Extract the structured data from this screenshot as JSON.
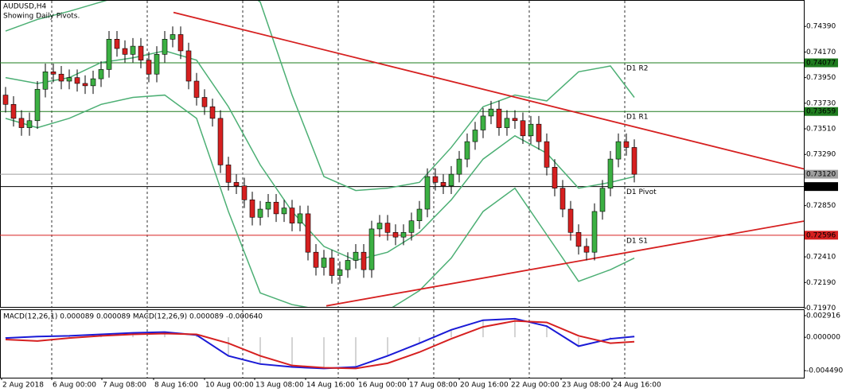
{
  "chart_data": {
    "type": "candlestick",
    "title": "AUDUSD,H4",
    "subtitle": "Showing Daily Pivots.",
    "xlim": [
      -0.7,
      100.3
    ],
    "ylim": [
      0.7198,
      0.7461
    ],
    "yticks": [
      {
        "value": 0.7439,
        "label": "0.74390"
      },
      {
        "value": 0.7417,
        "label": "0.74170"
      },
      {
        "value": 0.7395,
        "label": "0.73950"
      },
      {
        "value": 0.7373,
        "label": "0.73730"
      },
      {
        "value": 0.7351,
        "label": "0.73510"
      },
      {
        "value": 0.7329,
        "label": "0.73290"
      },
      {
        "value": 0.7285,
        "label": "0.72850"
      },
      {
        "value": 0.7241,
        "label": "0.72410"
      },
      {
        "value": 0.7219,
        "label": "0.72190"
      },
      {
        "value": 0.7197,
        "label": "0.71970"
      }
    ],
    "xticks": [
      {
        "value": -0.5,
        "label": "2 Aug 2018"
      },
      {
        "value": 5.8,
        "label": "6 Aug 00:00"
      },
      {
        "value": 12.1,
        "label": "7 Aug 08:00"
      },
      {
        "value": 18.6,
        "label": "8 Aug 16:00"
      },
      {
        "value": 25,
        "label": "10 Aug 00:00"
      },
      {
        "value": 31.3,
        "label": "13 Aug 08:00"
      },
      {
        "value": 37.7,
        "label": "14 Aug 16:00"
      },
      {
        "value": 44.2,
        "label": "16 Aug 00:00"
      },
      {
        "value": 50.6,
        "label": "17 Aug 08:00"
      },
      {
        "value": 57,
        "label": "20 Aug 16:00"
      },
      {
        "value": 63.4,
        "label": "22 Aug 00:00"
      },
      {
        "value": 69.8,
        "label": "23 Aug 08:00"
      },
      {
        "value": 76.2,
        "label": "24 Aug 16:00"
      }
    ],
    "vgrid": [
      5.8,
      17.8,
      29.8,
      41.8,
      53.8,
      65.8,
      77.8
    ],
    "bull_color": "#3cb043",
    "bear_color": "#d62020",
    "open": [
      0.738,
      0.7372,
      0.736,
      0.7352,
      0.7358,
      0.7385,
      0.74,
      0.7398,
      0.7392,
      0.7395,
      0.739,
      0.7388,
      0.7394,
      0.7402,
      0.7428,
      0.742,
      0.7415,
      0.7422,
      0.741,
      0.7398,
      0.7415,
      0.7428,
      0.7432,
      0.7418,
      0.7392,
      0.7378,
      0.737,
      0.736,
      0.732,
      0.7305,
      0.7302,
      0.729,
      0.7275,
      0.7282,
      0.7288,
      0.7278,
      0.7283,
      0.727,
      0.7278,
      0.7245,
      0.7232,
      0.724,
      0.7225,
      0.723,
      0.7238,
      0.7245,
      0.723,
      0.7265,
      0.727,
      0.7262,
      0.7258,
      0.7262,
      0.7272,
      0.7282,
      0.731,
      0.7305,
      0.7302,
      0.7312,
      0.7325,
      0.734,
      0.735,
      0.7362,
      0.7368,
      0.7352,
      0.736,
      0.7358,
      0.7345,
      0.7355,
      0.734,
      0.7318,
      0.73,
      0.7282,
      0.7262,
      0.725,
      0.7245,
      0.728,
      0.73,
      0.7325,
      0.734,
      0.7335
    ],
    "high": [
      0.7387,
      0.7379,
      0.7367,
      0.7365,
      0.7392,
      0.7407,
      0.7407,
      0.7405,
      0.7402,
      0.7402,
      0.7397,
      0.7401,
      0.7409,
      0.7435,
      0.7435,
      0.7427,
      0.7429,
      0.7429,
      0.7417,
      0.7422,
      0.7435,
      0.7439,
      0.7439,
      0.7425,
      0.7399,
      0.7385,
      0.7377,
      0.7367,
      0.7327,
      0.7312,
      0.7309,
      0.7297,
      0.7289,
      0.7295,
      0.7295,
      0.729,
      0.729,
      0.7285,
      0.7285,
      0.7252,
      0.7247,
      0.7247,
      0.7237,
      0.7245,
      0.7252,
      0.7252,
      0.7272,
      0.7277,
      0.7277,
      0.7269,
      0.7269,
      0.7279,
      0.7289,
      0.7317,
      0.7317,
      0.7312,
      0.7319,
      0.7332,
      0.7347,
      0.7357,
      0.7369,
      0.7375,
      0.7375,
      0.7367,
      0.7367,
      0.7365,
      0.7362,
      0.7362,
      0.7347,
      0.7325,
      0.7307,
      0.7289,
      0.7269,
      0.7257,
      0.7287,
      0.7307,
      0.7332,
      0.7347,
      0.7347,
      0.7342
    ],
    "low": [
      0.7365,
      0.7353,
      0.7345,
      0.7345,
      0.7351,
      0.7378,
      0.7391,
      0.7385,
      0.7385,
      0.7383,
      0.7381,
      0.7381,
      0.7387,
      0.7395,
      0.7413,
      0.7408,
      0.7408,
      0.7403,
      0.7391,
      0.7391,
      0.7408,
      0.7421,
      0.7411,
      0.7385,
      0.7371,
      0.7363,
      0.7353,
      0.7313,
      0.7298,
      0.7295,
      0.7283,
      0.7268,
      0.7268,
      0.7275,
      0.7271,
      0.7271,
      0.7263,
      0.7263,
      0.7238,
      0.7225,
      0.7225,
      0.7218,
      0.7218,
      0.7223,
      0.7231,
      0.7223,
      0.7223,
      0.7258,
      0.7255,
      0.7251,
      0.7251,
      0.7255,
      0.7265,
      0.7275,
      0.7298,
      0.7295,
      0.7295,
      0.7305,
      0.7318,
      0.7333,
      0.7343,
      0.7355,
      0.7345,
      0.7345,
      0.7351,
      0.7338,
      0.7338,
      0.7333,
      0.7311,
      0.7293,
      0.7275,
      0.7255,
      0.7243,
      0.7238,
      0.7238,
      0.7273,
      0.7293,
      0.7318,
      0.7328,
      0.7305
    ],
    "close": [
      0.7372,
      0.736,
      0.7352,
      0.7358,
      0.7385,
      0.74,
      0.7398,
      0.7392,
      0.7395,
      0.739,
      0.7388,
      0.7394,
      0.7402,
      0.7428,
      0.742,
      0.7415,
      0.7422,
      0.741,
      0.7398,
      0.7415,
      0.7428,
      0.7432,
      0.7418,
      0.7392,
      0.7378,
      0.737,
      0.736,
      0.732,
      0.7305,
      0.7302,
      0.729,
      0.7275,
      0.7282,
      0.7288,
      0.7278,
      0.7283,
      0.727,
      0.7278,
      0.7245,
      0.7232,
      0.724,
      0.7225,
      0.723,
      0.7238,
      0.7245,
      0.723,
      0.7265,
      0.727,
      0.7262,
      0.7258,
      0.7262,
      0.7272,
      0.7282,
      0.731,
      0.7305,
      0.7302,
      0.7312,
      0.7325,
      0.734,
      0.735,
      0.7362,
      0.7368,
      0.7352,
      0.736,
      0.7358,
      0.7345,
      0.7355,
      0.734,
      0.7318,
      0.73,
      0.7282,
      0.7262,
      0.725,
      0.7245,
      0.728,
      0.73,
      0.7325,
      0.734,
      0.7335,
      0.7312
    ],
    "bands": {
      "color": "#4caf74",
      "x": [
        0,
        4,
        8,
        12,
        16,
        20,
        24,
        28,
        32,
        36,
        40,
        44,
        48,
        52,
        56,
        60,
        64,
        68,
        72,
        76,
        79
      ],
      "series": [
        {
          "values": [
            0.7435,
            0.7445,
            0.7452,
            0.746,
            0.7468,
            0.7475,
            0.7478,
            0.748,
            0.746,
            0.738,
            0.731,
            0.7298,
            0.73,
            0.7305,
            0.7335,
            0.737,
            0.738,
            0.7375,
            0.74,
            0.7405,
            0.7378
          ]
        },
        {
          "values": [
            0.7395,
            0.739,
            0.7395,
            0.7408,
            0.7412,
            0.7418,
            0.741,
            0.737,
            0.732,
            0.728,
            0.725,
            0.7238,
            0.7245,
            0.7262,
            0.729,
            0.7325,
            0.7345,
            0.733,
            0.73,
            0.7305,
            0.731
          ]
        },
        {
          "values": [
            0.736,
            0.7352,
            0.736,
            0.7372,
            0.7378,
            0.738,
            0.736,
            0.728,
            0.721,
            0.72,
            0.7195,
            0.7192,
            0.7195,
            0.7212,
            0.724,
            0.728,
            0.73,
            0.726,
            0.722,
            0.723,
            0.724
          ]
        }
      ]
    },
    "trendlines": {
      "color": "#d62020",
      "lines": [
        {
          "x": [
            21.1,
            100.3
          ],
          "y": [
            0.7451,
            0.73166
          ]
        },
        {
          "x": [
            40.3,
            100.3
          ],
          "y": [
            0.71989,
            0.72717
          ]
        }
      ]
    },
    "levels": [
      {
        "name": "D1 R2",
        "value": 0.74077,
        "label": "0.74077",
        "color": "#1e7b1e"
      },
      {
        "name": "D1 R1",
        "value": 0.73659,
        "label": "0.73659",
        "color": "#1e7b1e"
      },
      {
        "name": "D1 Pivot",
        "value": 0.73014,
        "label": "0.73014",
        "color": "#000000"
      },
      {
        "name": "D1 S1",
        "value": 0.72596,
        "label": "0.72596",
        "color": "#d62020"
      }
    ],
    "current": {
      "value": 0.7312,
      "label": "0.73120",
      "color": "#9e9e9e"
    },
    "macd": {
      "title": "MACD(12,26,1) 0.000089 0.000089 MACD(12,26,9) 0.000089 -0.000640",
      "ylim": [
        -0.00544,
        0.00366
      ],
      "yticks": [
        {
          "value": 0.002916,
          "label": "0.002916"
        },
        {
          "value": 0,
          "label": "0.000000"
        },
        {
          "value": -0.00449,
          "label": "-0.004490"
        }
      ],
      "x": [
        0,
        4,
        8,
        12,
        16,
        20,
        24,
        28,
        32,
        36,
        40,
        44,
        48,
        52,
        56,
        60,
        64,
        68,
        72,
        76,
        79
      ],
      "series": [
        {
          "color": "#1a1ad6",
          "values": [
            -0.0001,
            0.0001,
            0.0002,
            0.0004,
            0.0006,
            0.0007,
            0.0003,
            -0.0025,
            -0.0036,
            -0.004,
            -0.0042,
            -0.004,
            -0.0025,
            -0.0008,
            0.001,
            0.0023,
            0.0025,
            0.0015,
            -0.0012,
            -0.0002,
            0.0001
          ]
        },
        {
          "color": "#d62020",
          "values": [
            -0.0003,
            -0.0005,
            -0.0001,
            0.0002,
            0.0004,
            0.0005,
            0.0004,
            -0.0008,
            -0.0025,
            -0.0038,
            -0.0041,
            -0.0042,
            -0.0035,
            -0.002,
            -0.0002,
            0.0014,
            0.0022,
            0.002,
            0.0002,
            -0.0008,
            -0.0006
          ]
        }
      ]
    }
  }
}
